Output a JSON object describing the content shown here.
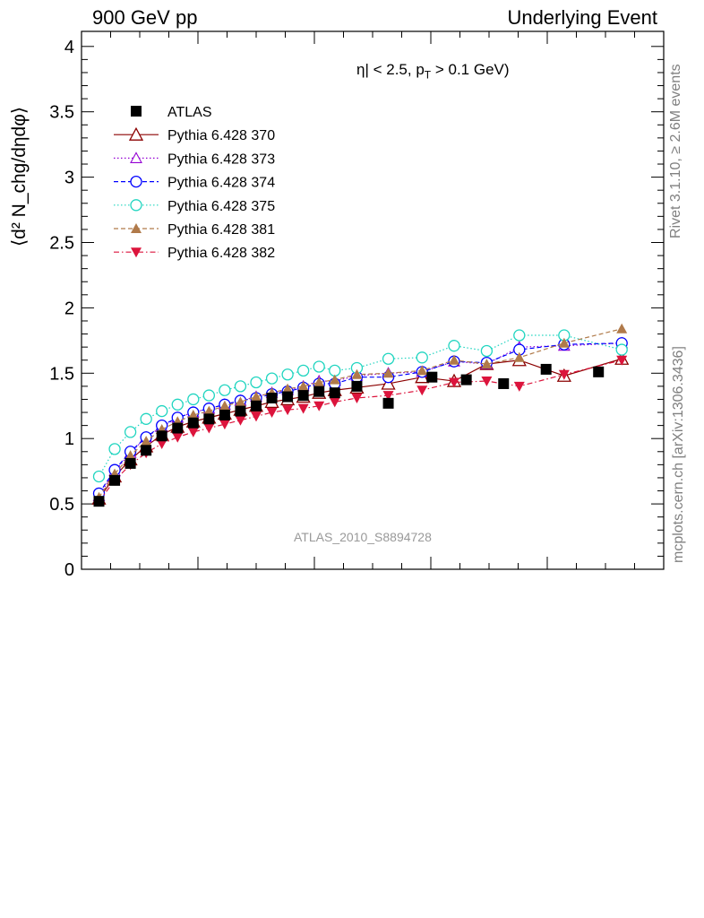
{
  "header": {
    "left_title": "900 GeV pp",
    "right_title": "Underlying Event"
  },
  "annotations": {
    "cut": "η| < 2.5, p",
    "cut_sub": "T",
    "cut_tail": " > 0.1 GeV)",
    "watermark": "ATLAS_2010_S8894728",
    "side_top": "Rivet 3.1.10, ≥ 2.6M events",
    "side_bottom": "mcplots.cern.ch [arXiv:1306.3436]"
  },
  "axis": {
    "ylabel": "⟨d² N_chg/dηdφ⟩"
  },
  "colors": {
    "atlas": "#000000",
    "s370": "#8b0000",
    "s373": "#9400d3",
    "s374": "#0000ff",
    "s375": "#20d5c0",
    "s381": "#b07a4a",
    "s382": "#dc143c"
  },
  "chart_data": {
    "type": "scatter",
    "ylim": [
      0,
      4.1
    ],
    "yticks": [
      0,
      0.5,
      1,
      1.5,
      2,
      2.5,
      3,
      3.5,
      4
    ],
    "ytick_labels": [
      "0",
      "0.5",
      "1",
      "1.5",
      "2",
      "2.5",
      "3",
      "3.5",
      "4"
    ],
    "xlim": [
      0,
      1
    ],
    "x_tick_labels_visible": false,
    "legend": "top-left",
    "series": [
      {
        "name": "ATLAS",
        "style": "data",
        "marker": "square-filled",
        "color": "#000000",
        "x": [
          0.03,
          0.057,
          0.084,
          0.111,
          0.138,
          0.165,
          0.192,
          0.219,
          0.246,
          0.273,
          0.3,
          0.327,
          0.354,
          0.381,
          0.408,
          0.435,
          0.473,
          0.527,
          0.602,
          0.661,
          0.725,
          0.798,
          0.888
        ],
        "y": [
          0.52,
          0.68,
          0.81,
          0.91,
          1.02,
          1.08,
          1.12,
          1.15,
          1.18,
          1.21,
          1.25,
          1.31,
          1.32,
          1.33,
          1.36,
          1.35,
          1.4,
          1.27,
          1.47,
          1.45,
          1.42,
          1.53,
          1.51
        ]
      },
      {
        "name": "Pythia 6.428 370",
        "style": "solid",
        "marker": "triangle-open",
        "color": "#8b0000",
        "x": [
          0.03,
          0.057,
          0.084,
          0.111,
          0.138,
          0.165,
          0.192,
          0.219,
          0.246,
          0.273,
          0.3,
          0.327,
          0.354,
          0.381,
          0.408,
          0.435,
          0.473,
          0.527,
          0.585,
          0.64,
          0.696,
          0.752,
          0.829,
          0.928
        ],
        "y": [
          0.54,
          0.71,
          0.84,
          0.94,
          1.03,
          1.09,
          1.13,
          1.16,
          1.19,
          1.22,
          1.25,
          1.28,
          1.3,
          1.32,
          1.35,
          1.37,
          1.39,
          1.42,
          1.47,
          1.44,
          1.57,
          1.6,
          1.48,
          1.61
        ]
      },
      {
        "name": "Pythia 6.428 373",
        "style": "dotted",
        "marker": "triangle-open-small",
        "color": "#9400d3",
        "x": [
          0.03,
          0.057,
          0.084,
          0.111,
          0.138,
          0.165,
          0.192,
          0.219,
          0.246,
          0.273,
          0.3,
          0.327,
          0.354,
          0.381,
          0.408,
          0.435,
          0.473,
          0.527,
          0.585,
          0.64,
          0.696,
          0.752,
          0.829,
          0.928
        ],
        "y": [
          0.56,
          0.75,
          0.89,
          1.01,
          1.09,
          1.16,
          1.2,
          1.23,
          1.26,
          1.29,
          1.32,
          1.35,
          1.37,
          1.4,
          1.44,
          1.44,
          1.48,
          1.5,
          1.51,
          1.59,
          1.57,
          1.7,
          1.71,
          1.73
        ]
      },
      {
        "name": "Pythia 6.428 374",
        "style": "dashed",
        "marker": "circle-open",
        "color": "#0000ff",
        "x": [
          0.03,
          0.057,
          0.084,
          0.111,
          0.138,
          0.165,
          0.192,
          0.219,
          0.246,
          0.273,
          0.3,
          0.327,
          0.354,
          0.381,
          0.408,
          0.435,
          0.473,
          0.527,
          0.585,
          0.64,
          0.696,
          0.752,
          0.829,
          0.928
        ],
        "y": [
          0.58,
          0.76,
          0.9,
          1.01,
          1.1,
          1.16,
          1.2,
          1.23,
          1.26,
          1.29,
          1.31,
          1.34,
          1.36,
          1.39,
          1.42,
          1.42,
          1.47,
          1.47,
          1.51,
          1.59,
          1.58,
          1.68,
          1.72,
          1.73
        ]
      },
      {
        "name": "Pythia 6.428 375",
        "style": "dotted",
        "marker": "circle-open",
        "color": "#20d5c0",
        "x": [
          0.03,
          0.057,
          0.084,
          0.111,
          0.138,
          0.165,
          0.192,
          0.219,
          0.246,
          0.273,
          0.3,
          0.327,
          0.354,
          0.381,
          0.408,
          0.435,
          0.473,
          0.527,
          0.585,
          0.64,
          0.696,
          0.752,
          0.829,
          0.928
        ],
        "y": [
          0.71,
          0.92,
          1.05,
          1.15,
          1.21,
          1.26,
          1.3,
          1.33,
          1.37,
          1.4,
          1.43,
          1.46,
          1.49,
          1.52,
          1.55,
          1.52,
          1.54,
          1.61,
          1.62,
          1.71,
          1.67,
          1.79,
          1.79,
          1.68
        ]
      },
      {
        "name": "Pythia 6.428 381",
        "style": "dashed",
        "marker": "triangle-filled",
        "color": "#b07a4a",
        "x": [
          0.03,
          0.057,
          0.084,
          0.111,
          0.138,
          0.165,
          0.192,
          0.219,
          0.246,
          0.273,
          0.3,
          0.327,
          0.354,
          0.381,
          0.408,
          0.435,
          0.473,
          0.527,
          0.585,
          0.64,
          0.696,
          0.752,
          0.829,
          0.928
        ],
        "y": [
          0.55,
          0.73,
          0.87,
          0.98,
          1.07,
          1.13,
          1.18,
          1.21,
          1.25,
          1.28,
          1.32,
          1.35,
          1.38,
          1.4,
          1.43,
          1.45,
          1.49,
          1.5,
          1.52,
          1.6,
          1.57,
          1.62,
          1.73,
          1.84
        ]
      },
      {
        "name": "Pythia 6.428 382",
        "style": "dashdot",
        "marker": "triangle-down-filled",
        "color": "#dc143c",
        "x": [
          0.03,
          0.057,
          0.084,
          0.111,
          0.138,
          0.165,
          0.192,
          0.219,
          0.246,
          0.273,
          0.3,
          0.327,
          0.354,
          0.381,
          0.408,
          0.435,
          0.473,
          0.527,
          0.585,
          0.64,
          0.696,
          0.752,
          0.829,
          0.928
        ],
        "y": [
          0.52,
          0.68,
          0.8,
          0.89,
          0.96,
          1.01,
          1.05,
          1.08,
          1.11,
          1.14,
          1.17,
          1.2,
          1.22,
          1.23,
          1.25,
          1.28,
          1.31,
          1.33,
          1.37,
          1.43,
          1.44,
          1.4,
          1.49,
          1.6
        ]
      }
    ]
  }
}
